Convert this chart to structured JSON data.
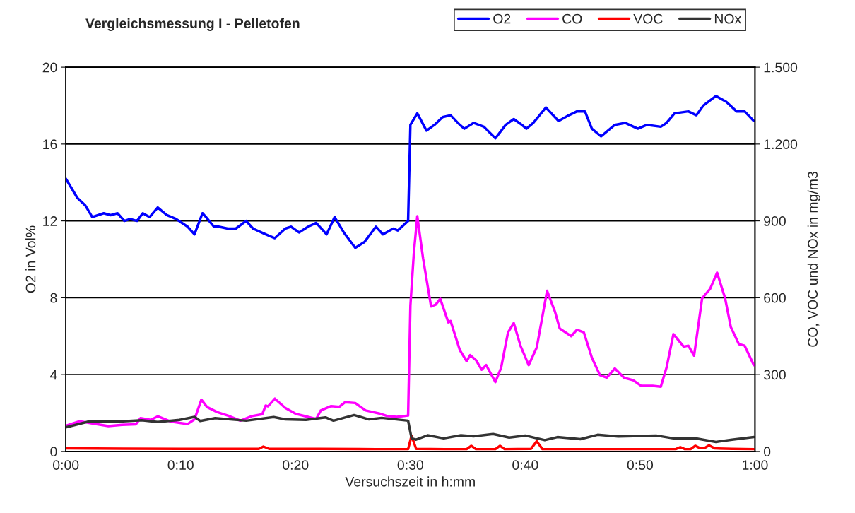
{
  "chart_data": {
    "type": "line",
    "title": "Vergleichsmessung I - Pelletofen",
    "xlabel": "Versuchszeit in h:mm",
    "ylabel": "O2 in Vol%",
    "y2label": "CO, VOC und NOx in mg/m3",
    "xlim": [
      0,
      60
    ],
    "xticks": [
      {
        "value": 0,
        "label": "0:00"
      },
      {
        "value": 10,
        "label": "0:10"
      },
      {
        "value": 20,
        "label": "0:20"
      },
      {
        "value": 30,
        "label": "0:30"
      },
      {
        "value": 40,
        "label": "0:40"
      },
      {
        "value": 50,
        "label": "0:50"
      },
      {
        "value": 60,
        "label": "1:00"
      }
    ],
    "ylim": [
      0,
      20
    ],
    "yticks": [
      0,
      4,
      8,
      12,
      16,
      20
    ],
    "y2lim": [
      0,
      1500
    ],
    "y2ticks": [
      0,
      300,
      600,
      900,
      {
        "value": 1200,
        "label": "1.200"
      },
      {
        "value": 1500,
        "label": "1.500"
      }
    ],
    "grid": "y",
    "legend": "top right",
    "marker": "none",
    "line_style": "solid",
    "series": [
      {
        "name": "O2",
        "color": "#0000ff",
        "x": [
          0,
          1.0,
          1.7,
          2.3,
          3.3,
          3.9,
          4.5,
          5.1,
          5.6,
          6.2,
          6.7,
          7.3,
          8.0,
          8.8,
          9.6,
          10.6,
          11.2,
          11.9,
          12.2,
          12.9,
          13.3,
          14.1,
          14.8,
          15.7,
          16.3,
          17.4,
          18.2,
          19.1,
          19.6,
          20.3,
          21.1,
          21.8,
          22.7,
          23.4,
          24.2,
          25.2,
          26.0,
          27.0,
          27.6,
          28.5,
          28.9,
          29.8,
          30.0,
          30.6,
          31.4,
          32.1,
          32.8,
          33.5,
          34.3,
          34.7,
          35.5,
          36.4,
          37.4,
          38.3,
          39.0,
          39.7,
          40.1,
          40.7,
          41.8,
          42.9,
          43.8,
          44.5,
          45.2,
          45.8,
          46.6,
          47.8,
          48.7,
          49.8,
          50.6,
          51.8,
          52.3,
          53.0,
          54.2,
          54.9,
          55.5,
          56.6,
          57.5,
          58.4,
          59.1,
          59.9
        ],
        "values": [
          14.2,
          13.2,
          12.8,
          12.2,
          12.4,
          12.3,
          12.4,
          12.0,
          12.1,
          12.0,
          12.4,
          12.2,
          12.7,
          12.3,
          12.1,
          11.7,
          11.3,
          12.4,
          12.2,
          11.7,
          11.7,
          11.6,
          11.6,
          12.0,
          11.6,
          11.3,
          11.1,
          11.6,
          11.7,
          11.4,
          11.7,
          11.9,
          11.3,
          12.2,
          11.4,
          10.6,
          10.9,
          11.7,
          11.3,
          11.6,
          11.5,
          12.0,
          17.0,
          17.6,
          16.7,
          17.0,
          17.4,
          17.5,
          17.0,
          16.8,
          17.1,
          16.9,
          16.3,
          17.0,
          17.3,
          17.0,
          16.8,
          17.1,
          17.9,
          17.2,
          17.5,
          17.7,
          17.7,
          16.8,
          16.4,
          17.0,
          17.1,
          16.8,
          17.0,
          16.9,
          17.1,
          17.6,
          17.7,
          17.5,
          18.0,
          18.5,
          18.2,
          17.7,
          17.7,
          17.2
        ]
      },
      {
        "name": "CO",
        "color": "#ff00ff",
        "axis": "y2",
        "x": [
          0,
          1.2,
          2.2,
          3.7,
          4.9,
          6.1,
          6.5,
          7.4,
          8.0,
          9.1,
          10.6,
          11.2,
          11.8,
          12.3,
          13.2,
          14.1,
          15.2,
          16.2,
          17.1,
          17.4,
          17.6,
          18.2,
          19.1,
          20.0,
          20.9,
          21.8,
          22.2,
          23.1,
          23.8,
          24.3,
          25.2,
          26.1,
          27.3,
          28.0,
          28.8,
          29.8,
          30.0,
          30.3,
          30.6,
          31.1,
          31.8,
          32.2,
          32.6,
          33.3,
          33.5,
          34.3,
          34.9,
          35.2,
          35.7,
          36.2,
          36.6,
          37.4,
          37.9,
          38.5,
          39.0,
          39.6,
          40.3,
          41.0,
          41.9,
          42.6,
          43.0,
          44.0,
          44.5,
          45.1,
          45.8,
          46.5,
          47.1,
          47.8,
          48.6,
          49.4,
          50.1,
          51.1,
          51.8,
          52.3,
          52.9,
          53.8,
          54.2,
          54.7,
          55.4,
          56.1,
          56.7,
          57.4,
          57.9,
          58.6,
          59.1,
          59.9
        ],
        "values": [
          100,
          118,
          110,
          99,
          104,
          106,
          130,
          123,
          137,
          117,
          107,
          125,
          202,
          173,
          153,
          140,
          120,
          138,
          145,
          179,
          176,
          206,
          170,
          147,
          137,
          127,
          160,
          177,
          174,
          192,
          189,
          160,
          148,
          138,
          135,
          140,
          570,
          775,
          918,
          755,
          566,
          573,
          596,
          504,
          509,
          396,
          352,
          376,
          357,
          319,
          337,
          271,
          327,
          465,
          501,
          411,
          337,
          406,
          627,
          544,
          480,
          450,
          475,
          465,
          366,
          298,
          288,
          324,
          288,
          278,
          256,
          256,
          253,
          327,
          458,
          409,
          413,
          374,
          598,
          635,
          698,
          598,
          485,
          419,
          413,
          337
        ]
      },
      {
        "name": "VOC",
        "color": "#ff0000",
        "axis": "y2",
        "x": [
          0,
          5,
          10,
          16.8,
          17.2,
          17.7,
          22,
          27,
          29.8,
          30.1,
          30.5,
          33,
          34.9,
          35.3,
          35.7,
          37.4,
          37.8,
          38.2,
          40.5,
          41.0,
          41.5,
          45,
          50,
          53.1,
          53.5,
          53.9,
          54.4,
          54.8,
          55.2,
          55.6,
          56.0,
          56.5,
          58,
          59.9
        ],
        "values": [
          12,
          11,
          10,
          10,
          19,
          10,
          10,
          9,
          9,
          61,
          10,
          9,
          9,
          22,
          9,
          9,
          22,
          9,
          10,
          40,
          9,
          9,
          9,
          9,
          17,
          9,
          9,
          22,
          13,
          13,
          24,
          12,
          10,
          9
        ]
      },
      {
        "name": "NOx",
        "color": "#333333",
        "axis": "y2",
        "x": [
          0,
          2.0,
          4.7,
          6.6,
          8.0,
          9.9,
          11.2,
          11.7,
          13.0,
          15.7,
          18.1,
          19.1,
          20.9,
          22.6,
          23.3,
          25.1,
          26.4,
          27.5,
          29.8,
          30.1,
          30.5,
          31.5,
          32.9,
          34.4,
          35.5,
          37.2,
          38.6,
          40.0,
          41.7,
          42.8,
          44.8,
          46.3,
          48.1,
          51.4,
          52.9,
          54.7,
          56.6,
          58.0,
          59.9
        ],
        "values": [
          94,
          117,
          117,
          122,
          115,
          123,
          135,
          119,
          130,
          120,
          134,
          125,
          123,
          133,
          120,
          142,
          125,
          131,
          120,
          51,
          46,
          63,
          51,
          63,
          59,
          68,
          54,
          62,
          44,
          56,
          48,
          65,
          58,
          62,
          51,
          52,
          37,
          46,
          56
        ]
      }
    ]
  }
}
